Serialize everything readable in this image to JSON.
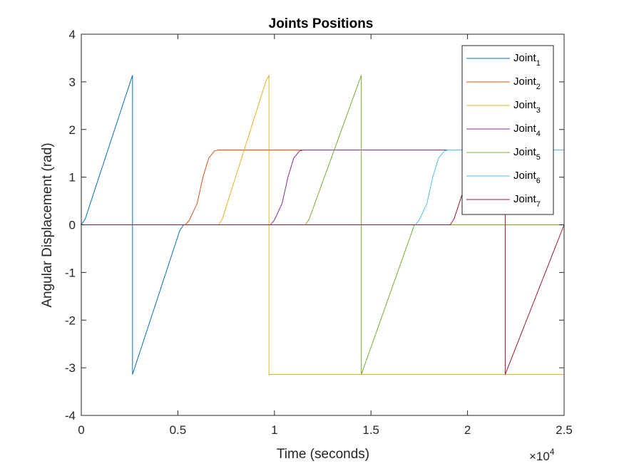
{
  "chart_data": {
    "type": "line",
    "title": "Joints Positions",
    "xlabel": "Time (seconds)",
    "ylabel": "Angular Displacement (rad)",
    "x_exponent_base": "×10",
    "x_exponent_power": "4",
    "xlim": [
      0,
      25000
    ],
    "ylim": [
      -4,
      4
    ],
    "x_ticks": [
      0,
      5000,
      10000,
      15000,
      20000,
      25000
    ],
    "x_tick_labels": [
      "0",
      "0.5",
      "1",
      "1.5",
      "2",
      "2.5"
    ],
    "y_ticks": [
      -4,
      -3,
      -2,
      -1,
      0,
      1,
      2,
      3,
      4
    ],
    "y_tick_labels": [
      "-4",
      "-3",
      "-2",
      "-1",
      "0",
      "1",
      "2",
      "3",
      "4"
    ],
    "grid": false,
    "legend_position": "top-right",
    "series": [
      {
        "name": "Joint",
        "subscript": "1",
        "color": "#0072BD",
        "points": [
          [
            0,
            0
          ],
          [
            200,
            0.12
          ],
          [
            2650,
            3.14
          ],
          [
            2650,
            -3.14
          ],
          [
            5100,
            -0.12
          ],
          [
            5300,
            0
          ],
          [
            25000,
            0
          ]
        ]
      },
      {
        "name": "Joint",
        "subscript": "2",
        "color": "#D95319",
        "points": [
          [
            0,
            0
          ],
          [
            5400,
            0
          ],
          [
            5600,
            0.1
          ],
          [
            6000,
            0.45
          ],
          [
            6300,
            1.0
          ],
          [
            6600,
            1.4
          ],
          [
            6900,
            1.55
          ],
          [
            7100,
            1.5708
          ],
          [
            25000,
            1.5708
          ]
        ]
      },
      {
        "name": "Joint",
        "subscript": "3",
        "color": "#EDB120",
        "points": [
          [
            0,
            0
          ],
          [
            7100,
            0
          ],
          [
            7300,
            0.12
          ],
          [
            9550,
            3.0
          ],
          [
            9720,
            3.14
          ],
          [
            9720,
            -3.14
          ],
          [
            25000,
            -3.14
          ]
        ]
      },
      {
        "name": "Joint",
        "subscript": "4",
        "color": "#7E2F8E",
        "points": [
          [
            0,
            0
          ],
          [
            9800,
            0
          ],
          [
            10000,
            0.1
          ],
          [
            10400,
            0.45
          ],
          [
            10700,
            1.0
          ],
          [
            11000,
            1.4
          ],
          [
            11300,
            1.55
          ],
          [
            11500,
            1.5708
          ],
          [
            25000,
            1.5708
          ]
        ]
      },
      {
        "name": "Joint",
        "subscript": "5",
        "color": "#77AC30",
        "points": [
          [
            0,
            0
          ],
          [
            11600,
            0
          ],
          [
            11800,
            0.12
          ],
          [
            14500,
            3.14
          ],
          [
            14500,
            -3.14
          ],
          [
            17250,
            0
          ],
          [
            25000,
            0
          ]
        ]
      },
      {
        "name": "Joint",
        "subscript": "6",
        "color": "#4DBEEE",
        "points": [
          [
            0,
            0
          ],
          [
            17300,
            0
          ],
          [
            17500,
            0.1
          ],
          [
            17900,
            0.45
          ],
          [
            18200,
            1.0
          ],
          [
            18500,
            1.4
          ],
          [
            18800,
            1.55
          ],
          [
            19000,
            1.5708
          ],
          [
            25000,
            1.5708
          ]
        ]
      },
      {
        "name": "Joint",
        "subscript": "7",
        "color": "#A2142F",
        "points": [
          [
            0,
            0
          ],
          [
            19100,
            0
          ],
          [
            19300,
            0.12
          ],
          [
            20100,
            1.1
          ],
          [
            21950,
            3.14
          ],
          [
            21950,
            -3.14
          ],
          [
            25000,
            0
          ]
        ]
      }
    ]
  }
}
